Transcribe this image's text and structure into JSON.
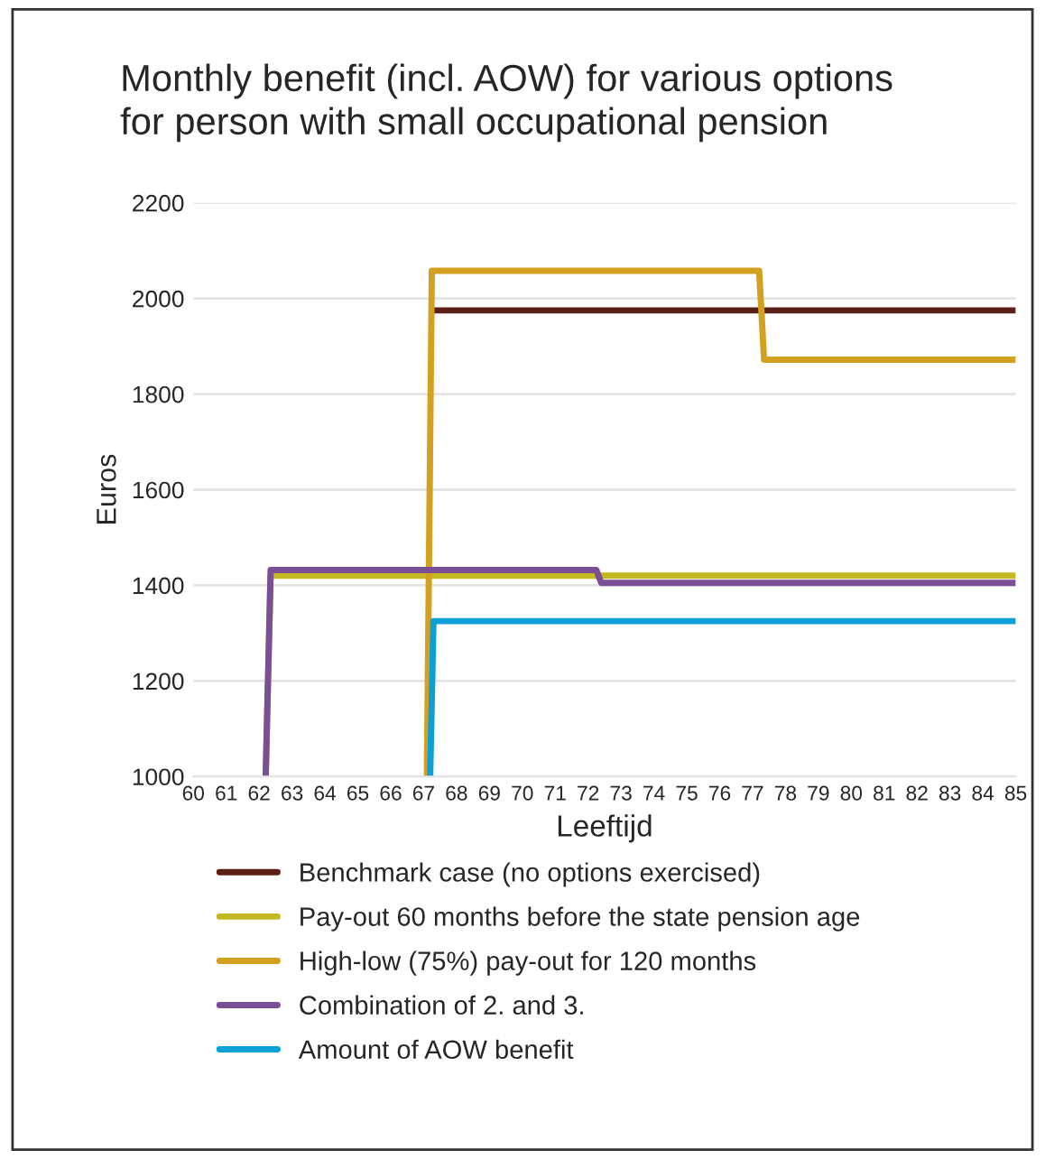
{
  "chart_data": {
    "type": "line",
    "title": "Monthly benefit (incl. AOW) for various options\nfor person with small occupational pension",
    "xlabel": "Leeftijd",
    "ylabel": "Euros",
    "xlim": [
      60,
      85
    ],
    "xticks": [
      60,
      61,
      62,
      63,
      64,
      65,
      66,
      67,
      68,
      69,
      70,
      71,
      72,
      73,
      74,
      75,
      76,
      77,
      78,
      79,
      80,
      81,
      82,
      83,
      84,
      85
    ],
    "ylim": [
      1000,
      2200
    ],
    "yticks": [
      1000,
      1200,
      1400,
      1600,
      1800,
      2000,
      2200
    ],
    "grid": "y",
    "legend": "bottom",
    "line_style": "solid",
    "series": [
      {
        "name": "Benchmark case (no options exercised)",
        "color": "#5c1f16",
        "x": [
          67.25,
          85
        ],
        "values": [
          1975,
          1975
        ]
      },
      {
        "name": "Pay-out 60 months before the state pension age",
        "color": "#c4b823",
        "x": [
          62.2,
          62.35,
          85
        ],
        "values": [
          1000,
          1420,
          1420
        ]
      },
      {
        "name": "High-low (75%) pay-out for 120 months",
        "color": "#d4a020",
        "x": [
          67.1,
          67.25,
          77.2,
          77.35,
          85
        ],
        "values": [
          1000,
          2058,
          2058,
          1872,
          1872
        ]
      },
      {
        "name": "Combination of 2. and 3.",
        "color": "#7b4f96",
        "x": [
          62.2,
          62.35,
          72.25,
          72.4,
          85
        ],
        "values": [
          1000,
          1432,
          1432,
          1405,
          1405
        ]
      },
      {
        "name": "Amount of AOW benefit",
        "color": "#0ba0d8",
        "x": [
          67.2,
          67.3,
          85
        ],
        "values": [
          1000,
          1325,
          1325
        ]
      }
    ]
  }
}
